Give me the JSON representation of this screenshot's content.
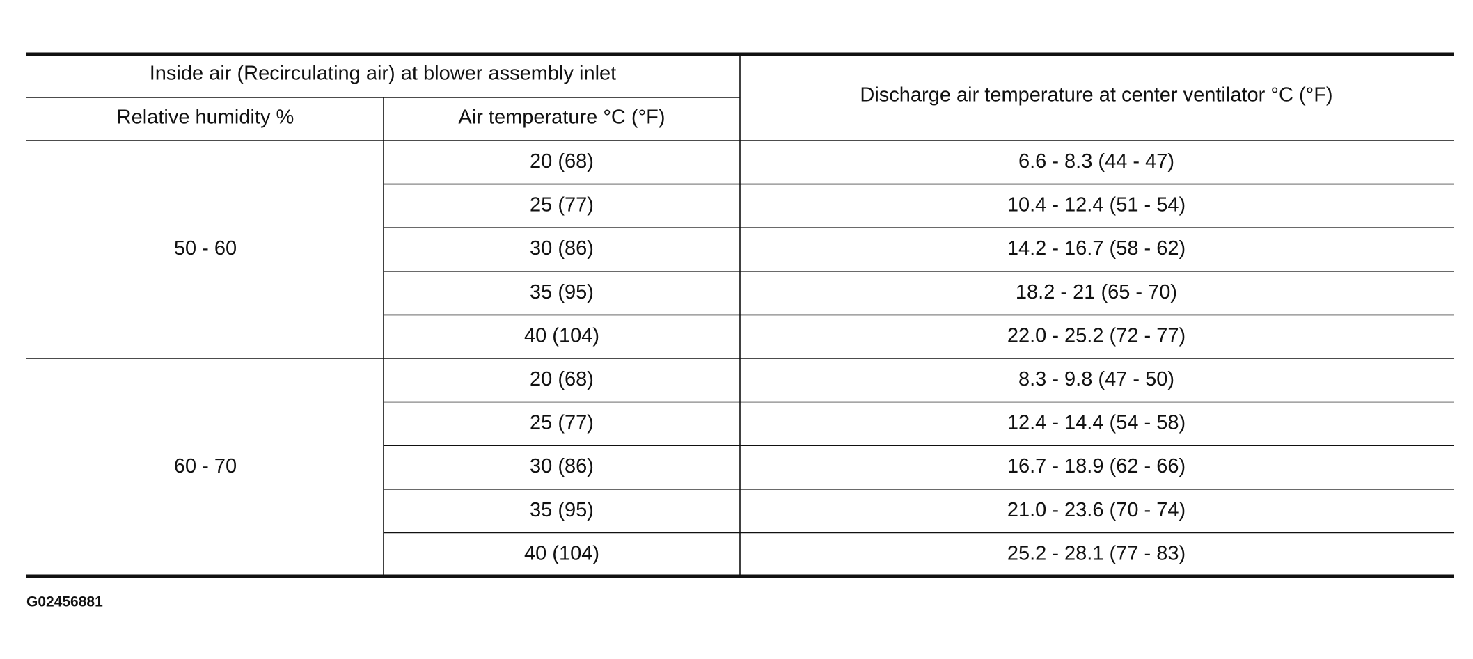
{
  "table": {
    "header": {
      "group": "Inside air (Recirculating air) at blower assembly inlet",
      "humidity": "Relative humidity %",
      "air_temp": "Air temperature °C (°F)",
      "discharge": "Discharge air temperature at center ventilator °C (°F)"
    },
    "groups": [
      {
        "humidity": "50 - 60",
        "rows": [
          [
            "20 (68)",
            "6.6 - 8.3 (44 - 47)"
          ],
          [
            "25 (77)",
            "10.4 - 12.4 (51 - 54)"
          ],
          [
            "30 (86)",
            "14.2 - 16.7 (58 - 62)"
          ],
          [
            "35 (95)",
            "18.2 - 21 (65 - 70)"
          ],
          [
            "40 (104)",
            "22.0 - 25.2 (72 - 77)"
          ]
        ]
      },
      {
        "humidity": "60 - 70",
        "rows": [
          [
            "20 (68)",
            "8.3 - 9.8 (47 - 50)"
          ],
          [
            "25 (77)",
            "12.4 - 14.4 (54 - 58)"
          ],
          [
            "30 (86)",
            "16.7 - 18.9 (62 - 66)"
          ],
          [
            "35 (95)",
            "21.0 - 23.6 (70 - 74)"
          ],
          [
            "40 (104)",
            "25.2 - 28.1 (77 - 83)"
          ]
        ]
      }
    ]
  },
  "figure_id": "G02456881"
}
